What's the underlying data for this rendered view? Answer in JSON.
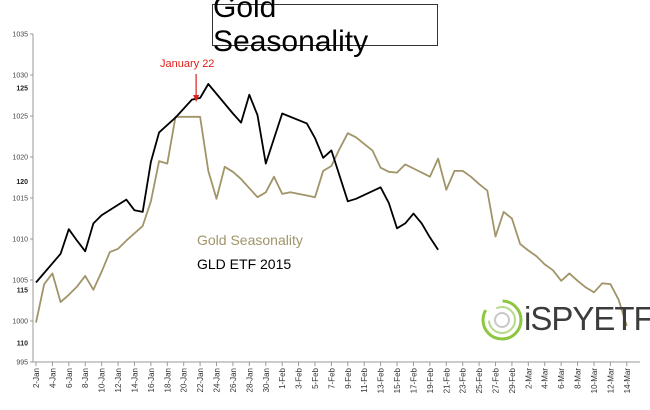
{
  "title": "Gold Seasonality",
  "legend": {
    "series1": "Gold Seasonality",
    "series2": "GLD ETF 2015"
  },
  "annotation": {
    "text": "January 22",
    "color": "#e0201b"
  },
  "logo": {
    "text": "iSPYETF",
    "icon": "swirl-logo-icon"
  },
  "colors": {
    "gold": "#a09468",
    "gld": "#000000",
    "grid": "#d9d9d9"
  },
  "chart_data": {
    "type": "line",
    "categories": [
      "2-Jan",
      "4-Jan",
      "6-Jan",
      "8-Jan",
      "10-Jan",
      "12-Jan",
      "14-Jan",
      "16-Jan",
      "18-Jan",
      "20-Jan",
      "22-Jan",
      "24-Jan",
      "26-Jan",
      "28-Jan",
      "30-Jan",
      "1-Feb",
      "3-Feb",
      "5-Feb",
      "7-Feb",
      "9-Feb",
      "11-Feb",
      "13-Feb",
      "15-Feb",
      "17-Feb",
      "19-Feb",
      "21-Feb",
      "23-Feb",
      "25-Feb",
      "27-Feb",
      "29-Feb",
      "2-Mar",
      "4-Mar",
      "6-Mar",
      "8-Mar",
      "10-Mar",
      "12-Mar",
      "14-Mar"
    ],
    "left_axis": {
      "ticks": [
        995,
        1000,
        1005,
        1010,
        1015,
        1020,
        1025,
        1030,
        1035
      ],
      "range": [
        995,
        1035
      ]
    },
    "right_axis": {
      "ticks": [
        110,
        115,
        120,
        125
      ]
    },
    "series": [
      {
        "name": "Gold Seasonality",
        "axis": "left",
        "x": [
          2,
          3,
          4,
          5,
          6,
          7,
          8,
          9,
          10,
          11,
          12,
          13,
          14,
          15,
          16,
          17,
          18,
          19,
          20,
          21,
          22,
          23,
          24,
          25,
          26,
          27,
          28,
          29,
          30,
          31,
          32,
          33,
          34,
          35,
          36,
          37,
          38,
          39,
          40,
          41,
          42,
          43,
          44,
          45,
          46,
          47,
          48,
          49,
          50,
          51,
          52,
          53,
          54,
          55,
          56,
          57,
          58,
          59,
          60,
          61,
          62,
          63,
          64,
          65,
          66,
          67,
          68,
          69,
          70,
          71,
          72,
          73,
          74
        ],
        "values": [
          999.8,
          1004.5,
          1005.8,
          1002.3,
          1003.2,
          1004.2,
          1005.5,
          1003.8,
          1006.0,
          1008.4,
          1008.8,
          1009.8,
          1010.7,
          1011.6,
          1014.6,
          1019.5,
          1019.2,
          1024.9,
          1024.9,
          1024.9,
          1024.9,
          1018.3,
          1014.9,
          1018.8,
          1018.2,
          1017.3,
          1016.2,
          1015.1,
          1015.7,
          1017.6,
          1015.5,
          1015.7,
          1015.5,
          1015.3,
          1015.1,
          1018.3,
          1018.9,
          1021.0,
          1022.9,
          1022.4,
          1021.6,
          1020.8,
          1018.7,
          1018.2,
          1018.1,
          1019.1,
          1018.6,
          1018.1,
          1017.6,
          1019.8,
          1016.0,
          1018.3,
          1018.3,
          1017.6,
          1016.7,
          1015.9,
          1010.3,
          1013.3,
          1012.5,
          1009.4,
          1008.6,
          1007.9,
          1006.9,
          1006.2,
          1004.9,
          1005.8,
          1004.9,
          1004.1,
          1003.5,
          1004.6,
          1004.5,
          1002.6,
          999.4
        ]
      },
      {
        "name": "GLD ETF 2015",
        "axis": "left",
        "x": [
          2,
          5,
          6,
          7,
          8,
          9,
          10,
          13,
          14,
          15,
          16,
          17,
          19,
          21,
          22,
          23,
          26,
          27,
          28,
          29,
          30,
          32,
          35,
          36,
          37,
          38,
          40,
          41,
          44,
          45,
          46,
          47
        ],
        "values": [
          1004.7,
          1008.2,
          1011.2,
          1009.8,
          1008.5,
          1011.9,
          1012.9,
          1014.8,
          1013.5,
          1013.3,
          1019.4,
          1023.0,
          1024.8,
          1027.0,
          1027.2,
          1028.9,
          1025.3,
          1024.2,
          1027.6,
          1025.1,
          1019.2,
          1025.3,
          1024.1,
          1022.3,
          1019.9,
          1020.8,
          1014.6,
          1014.9,
          1016.3,
          1014.4,
          1011.3,
          1011.9
        ]
      }
    ],
    "extra_gld_tail": {
      "x": [
        48,
        49,
        50,
        51
      ],
      "values": [
        1013.1,
        1011.9,
        1010.2,
        1008.7
      ]
    },
    "annotation_x": 22,
    "grid": false,
    "legend_placement": "center"
  }
}
